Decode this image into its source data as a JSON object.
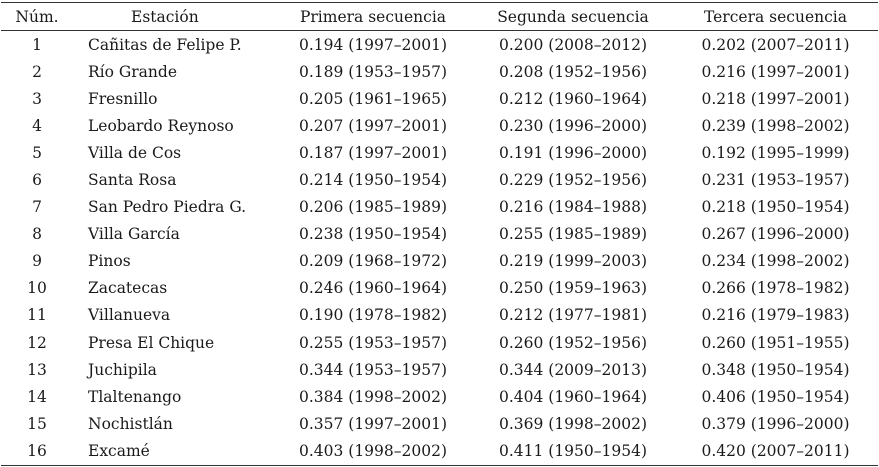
{
  "headers": {
    "num": "Núm.",
    "estacion": "Estación",
    "primera": "Primera secuencia",
    "segunda": "Segunda secuencia",
    "tercera": "Tercera secuencia"
  },
  "rows": [
    {
      "num": "1",
      "estacion": "Cañitas de Felipe P.",
      "s1": "0.194 (1997–2001)",
      "s2": "0.200 (2008–2012)",
      "s3": "0.202 (2007–2011)"
    },
    {
      "num": "2",
      "estacion": "Río Grande",
      "s1": "0.189 (1953–1957)",
      "s2": "0.208 (1952–1956)",
      "s3": "0.216 (1997–2001)"
    },
    {
      "num": "3",
      "estacion": "Fresnillo",
      "s1": "0.205 (1961–1965)",
      "s2": "0.212 (1960–1964)",
      "s3": "0.218 (1997–2001)"
    },
    {
      "num": "4",
      "estacion": "Leobardo Reynoso",
      "s1": "0.207 (1997–2001)",
      "s2": "0.230 (1996–2000)",
      "s3": "0.239 (1998–2002)"
    },
    {
      "num": "5",
      "estacion": "Villa de Cos",
      "s1": "0.187 (1997–2001)",
      "s2": "0.191 (1996–2000)",
      "s3": "0.192 (1995–1999)"
    },
    {
      "num": "6",
      "estacion": "Santa Rosa",
      "s1": "0.214 (1950–1954)",
      "s2": "0.229 (1952–1956)",
      "s3": "0.231 (1953–1957)"
    },
    {
      "num": "7",
      "estacion": "San Pedro Piedra G.",
      "s1": "0.206 (1985–1989)",
      "s2": "0.216 (1984–1988)",
      "s3": "0.218 (1950–1954)"
    },
    {
      "num": "8",
      "estacion": "Villa García",
      "s1": "0.238 (1950–1954)",
      "s2": "0.255 (1985–1989)",
      "s3": "0.267 (1996–2000)"
    },
    {
      "num": "9",
      "estacion": "Pinos",
      "s1": "0.209 (1968–1972)",
      "s2": "0.219 (1999–2003)",
      "s3": "0.234 (1998–2002)"
    },
    {
      "num": "10",
      "estacion": "Zacatecas",
      "s1": "0.246 (1960–1964)",
      "s2": "0.250 (1959–1963)",
      "s3": "0.266 (1978–1982)"
    },
    {
      "num": "11",
      "estacion": "Villanueva",
      "s1": "0.190 (1978–1982)",
      "s2": "0.212 (1977–1981)",
      "s3": "0.216 (1979–1983)"
    },
    {
      "num": "12",
      "estacion": "Presa El Chique",
      "s1": "0.255 (1953–1957)",
      "s2": "0.260 (1952–1956)",
      "s3": "0.260 (1951–1955)"
    },
    {
      "num": "13",
      "estacion": "Juchipila",
      "s1": "0.344 (1953–1957)",
      "s2": "0.344 (2009–2013)",
      "s3": "0.348 (1950–1954)"
    },
    {
      "num": "14",
      "estacion": "Tlaltenango",
      "s1": "0.384 (1998–2002)",
      "s2": "0.404 (1960–1964)",
      "s3": "0.406 (1950–1954)"
    },
    {
      "num": "15",
      "estacion": "Nochistlán",
      "s1": "0.357 (1997–2001)",
      "s2": "0.369 (1998–2002)",
      "s3": "0.379 (1996–2000)"
    },
    {
      "num": "16",
      "estacion": "Excamé",
      "s1": "0.403 (1998–2002)",
      "s2": "0.411 (1950–1954)",
      "s3": "0.420 (2007–2011)"
    }
  ]
}
